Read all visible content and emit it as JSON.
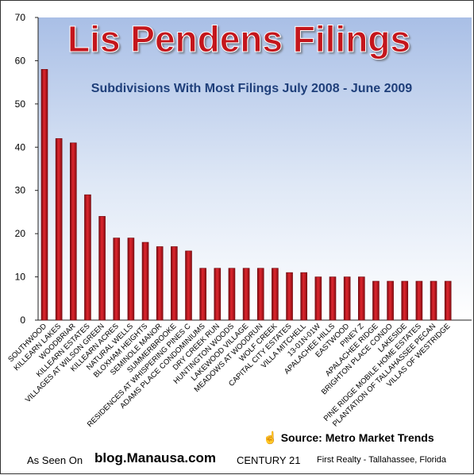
{
  "chart_data": {
    "type": "bar",
    "title": "Lis Pendens Filings",
    "subtitle": "Subdivisions With Most Filings July 2008 - June 2009",
    "xlabel": "",
    "ylabel": "",
    "ylim": [
      0,
      70
    ],
    "yticks": [
      "0",
      "10",
      "20",
      "30",
      "40",
      "50",
      "60",
      "70"
    ],
    "grid": false,
    "legend": "none",
    "categories": [
      "SOUTHWOOD",
      "KILLEARN LAKES",
      "WOODBRIAR",
      "KILLEARN ESTATES",
      "VILLAGES AT WILSON GREEN",
      "KILLEARN ACRES",
      "NATURAL WELLS",
      "BLOXHAM HEIGHTS",
      "SEMINOLE MANOR",
      "SUMMERBROOKE",
      "RESIDENCES AT WHISPERING PINES C",
      "ADAMS PLACE CONDOMINIUMS",
      "DRY CREEK RUN",
      "HUNTINGTON WOODS",
      "LAKEWOOD VILLAGE",
      "MEADOWS AT WOODRUN",
      "WOLF CREEK",
      "CAPITAL CITY ESTATES",
      "VILLA MITCHELL",
      "13-01N-01W",
      "APALACHEE HILLS",
      "EASTWOOD",
      "PINEY Z",
      "APALACHEE RIDGE",
      "BRIGHTON PLACE CONDO",
      "LAKESIDE",
      "PINE RIDGE MOBILE HOME ESTATES",
      "PLANTATION OF TALLAHASSEE PECAN",
      "VILLAS OF WESTRIDGE"
    ],
    "values": [
      58,
      42,
      41,
      29,
      24,
      19,
      19,
      18,
      17,
      17,
      16,
      12,
      12,
      12,
      12,
      12,
      12,
      11,
      11,
      10,
      10,
      10,
      10,
      9,
      9,
      9,
      9,
      9,
      9
    ]
  },
  "source": "Source: Metro Market Trends",
  "footer": {
    "as_seen_on": "As Seen On",
    "blog": "blog.Manausa.com",
    "century": "CENTURY 21",
    "rest": "First Realty - Tallahassee, Florida"
  },
  "colors": {
    "bar": "#c0121c",
    "title": "#c4141c",
    "subtitle": "#1f3f7a",
    "background_top": "#a9bfe6",
    "background_bottom": "#ffffff"
  }
}
